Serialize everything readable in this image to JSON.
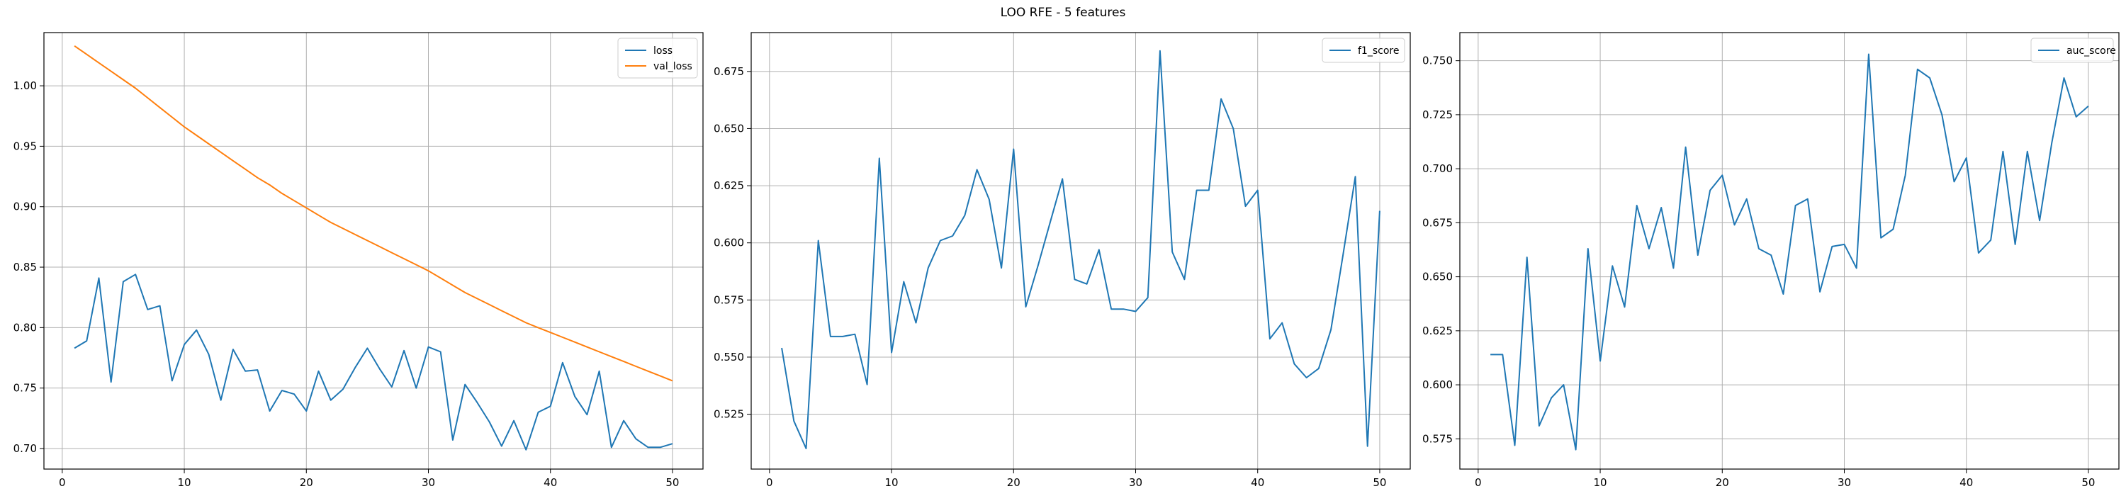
{
  "title": "LOO RFE - 5 features",
  "colors": {
    "blue": "#1f77b4",
    "orange": "#ff7f0e",
    "grid": "#b0b0b0",
    "axis": "#000000"
  },
  "chart_data": [
    {
      "type": "line",
      "grid": true,
      "legend": "top-right",
      "xlim": [
        -1.5,
        52.5
      ],
      "ylim": [
        0.683,
        1.044
      ],
      "xticks": [
        0,
        10,
        20,
        30,
        40,
        50
      ],
      "yticks": [
        0.7,
        0.75,
        0.8,
        0.85,
        0.9,
        0.95,
        1.0
      ],
      "ytick_labels": [
        "0.70",
        "0.75",
        "0.80",
        "0.85",
        "0.90",
        "0.95",
        "1.00"
      ],
      "x": [
        1,
        2,
        3,
        4,
        5,
        6,
        7,
        8,
        9,
        10,
        11,
        12,
        13,
        14,
        15,
        16,
        17,
        18,
        19,
        20,
        21,
        22,
        23,
        24,
        25,
        26,
        27,
        28,
        29,
        30,
        31,
        32,
        33,
        34,
        35,
        36,
        37,
        38,
        39,
        40,
        41,
        42,
        43,
        44,
        45,
        46,
        47,
        48,
        49,
        50
      ],
      "series": [
        {
          "name": "loss",
          "color": "#1f77b4",
          "values": [
            0.783,
            0.789,
            0.841,
            0.755,
            0.838,
            0.844,
            0.815,
            0.818,
            0.756,
            0.786,
            0.798,
            0.778,
            0.74,
            0.782,
            0.764,
            0.765,
            0.731,
            0.748,
            0.745,
            0.731,
            0.764,
            0.74,
            0.749,
            0.767,
            0.783,
            0.766,
            0.751,
            0.781,
            0.75,
            0.784,
            0.78,
            0.707,
            0.753,
            0.738,
            0.722,
            0.702,
            0.723,
            0.699,
            0.73,
            0.735,
            0.771,
            0.743,
            0.728,
            0.764,
            0.701,
            0.723,
            0.708,
            0.701,
            0.701,
            0.704
          ]
        },
        {
          "name": "val_loss",
          "color": "#ff7f0e",
          "values": [
            1.033,
            1.026,
            1.019,
            1.012,
            1.005,
            0.998,
            0.99,
            0.982,
            0.974,
            0.966,
            0.959,
            0.952,
            0.945,
            0.938,
            0.931,
            0.924,
            0.918,
            0.911,
            0.905,
            0.899,
            0.893,
            0.887,
            0.882,
            0.877,
            0.872,
            0.867,
            0.862,
            0.857,
            0.852,
            0.847,
            0.841,
            0.835,
            0.829,
            0.824,
            0.819,
            0.814,
            0.809,
            0.804,
            0.8,
            0.796,
            0.792,
            0.788,
            0.784,
            0.78,
            0.776,
            0.772,
            0.768,
            0.764,
            0.76,
            0.756
          ]
        }
      ]
    },
    {
      "type": "line",
      "grid": true,
      "legend": "top-right",
      "xlim": [
        -1.5,
        52.5
      ],
      "ylim": [
        0.501,
        0.692
      ],
      "xticks": [
        0,
        10,
        20,
        30,
        40,
        50
      ],
      "yticks": [
        0.525,
        0.55,
        0.575,
        0.6,
        0.625,
        0.65,
        0.675
      ],
      "ytick_labels": [
        "0.525",
        "0.550",
        "0.575",
        "0.600",
        "0.625",
        "0.650",
        "0.675"
      ],
      "x": [
        1,
        2,
        3,
        4,
        5,
        6,
        7,
        8,
        9,
        10,
        11,
        12,
        13,
        14,
        15,
        16,
        17,
        18,
        19,
        20,
        21,
        22,
        23,
        24,
        25,
        26,
        27,
        28,
        29,
        30,
        31,
        32,
        33,
        34,
        35,
        36,
        37,
        38,
        39,
        40,
        41,
        42,
        43,
        44,
        45,
        46,
        47,
        48,
        49,
        50
      ],
      "series": [
        {
          "name": "f1_score",
          "color": "#1f77b4",
          "values": [
            0.554,
            0.522,
            0.51,
            0.601,
            0.559,
            0.559,
            0.56,
            0.538,
            0.637,
            0.552,
            0.583,
            0.565,
            0.589,
            0.601,
            0.603,
            0.612,
            0.632,
            0.619,
            0.589,
            0.641,
            0.572,
            0.59,
            0.609,
            0.628,
            0.584,
            0.582,
            0.597,
            0.571,
            0.571,
            0.57,
            0.576,
            0.684,
            0.596,
            0.584,
            0.623,
            0.623,
            0.663,
            0.65,
            0.616,
            0.623,
            0.558,
            0.565,
            0.547,
            0.541,
            0.545,
            0.562,
            0.595,
            0.629,
            0.511,
            0.614
          ]
        }
      ]
    },
    {
      "type": "line",
      "grid": true,
      "legend": "top-right",
      "xlim": [
        -1.5,
        52.5
      ],
      "ylim": [
        0.561,
        0.763
      ],
      "xticks": [
        0,
        10,
        20,
        30,
        40,
        50
      ],
      "yticks": [
        0.575,
        0.6,
        0.625,
        0.65,
        0.675,
        0.7,
        0.725,
        0.75
      ],
      "ytick_labels": [
        "0.575",
        "0.600",
        "0.625",
        "0.650",
        "0.675",
        "0.700",
        "0.725",
        "0.750"
      ],
      "x": [
        1,
        2,
        3,
        4,
        5,
        6,
        7,
        8,
        9,
        10,
        11,
        12,
        13,
        14,
        15,
        16,
        17,
        18,
        19,
        20,
        21,
        22,
        23,
        24,
        25,
        26,
        27,
        28,
        29,
        30,
        31,
        32,
        33,
        34,
        35,
        36,
        37,
        38,
        39,
        40,
        41,
        42,
        43,
        44,
        45,
        46,
        47,
        48,
        49,
        50
      ],
      "series": [
        {
          "name": "auc_score",
          "color": "#1f77b4",
          "values": [
            0.614,
            0.614,
            0.572,
            0.659,
            0.581,
            0.594,
            0.6,
            0.57,
            0.663,
            0.611,
            0.655,
            0.636,
            0.683,
            0.663,
            0.682,
            0.654,
            0.71,
            0.66,
            0.69,
            0.697,
            0.674,
            0.686,
            0.663,
            0.66,
            0.642,
            0.683,
            0.686,
            0.643,
            0.664,
            0.665,
            0.654,
            0.753,
            0.668,
            0.672,
            0.697,
            0.746,
            0.742,
            0.725,
            0.694,
            0.705,
            0.661,
            0.667,
            0.708,
            0.665,
            0.708,
            0.676,
            0.712,
            0.742,
            0.724,
            0.729
          ]
        }
      ]
    }
  ]
}
